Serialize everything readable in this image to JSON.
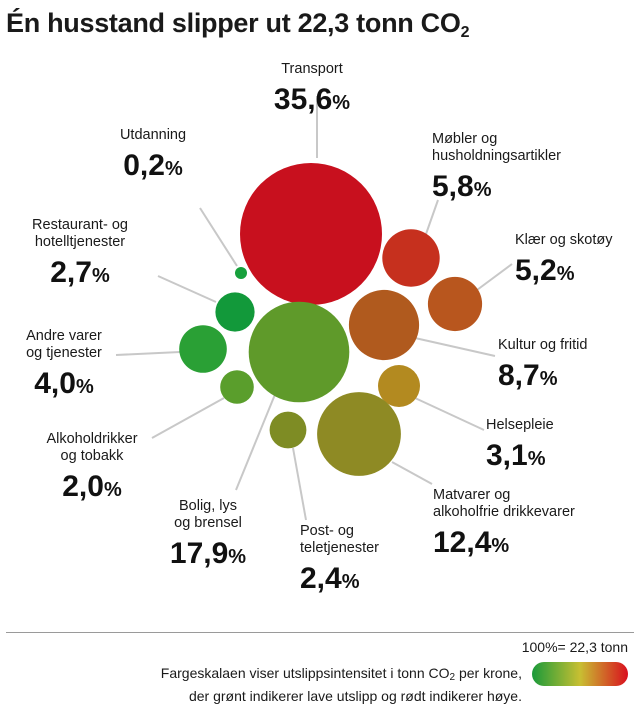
{
  "title": {
    "text": "Én husstand slipper ut 22,3 tonn CO",
    "sub": "2"
  },
  "scale_note": "100%= 22,3 tonn",
  "legend": {
    "line1_pre": "Fargeskalaen viser utslippsintensitet i tonn CO",
    "line1_sub": "2",
    "line1_post": " per krone,",
    "line2": "der grønt indikerer lave utslipp og rødt indikerer høye.",
    "gradient_colors": [
      "#1a9a3a",
      "#c8bf32",
      "#d90f1e"
    ]
  },
  "chart_data": {
    "type": "bubble",
    "title": "Én husstand slipper ut 22,3 tonn CO2",
    "total": "22,3 tonn",
    "unit": "%",
    "series": [
      {
        "category": "Transport",
        "value": 35.6,
        "label": "35,6",
        "color": "#c8101e"
      },
      {
        "category": "Møbler og husholdningsartikler",
        "value": 5.8,
        "label": "5,8",
        "color": "#c6301e"
      },
      {
        "category": "Klær og skotøy",
        "value": 5.2,
        "label": "5,2",
        "color": "#b8561e"
      },
      {
        "category": "Kultur og fritid",
        "value": 8.7,
        "label": "8,7",
        "color": "#b05a1e"
      },
      {
        "category": "Helsepleie",
        "value": 3.1,
        "label": "3,1",
        "color": "#b38a20"
      },
      {
        "category": "Matvarer og alkoholfrie drikkevarer",
        "value": 12.4,
        "label": "12,4",
        "color": "#8e8a24"
      },
      {
        "category": "Post- og teletjenester",
        "value": 2.4,
        "label": "2,4",
        "color": "#7e8c24"
      },
      {
        "category": "Bolig, lys og brensel",
        "value": 17.9,
        "label": "17,9",
        "color": "#5f9a2a"
      },
      {
        "category": "Alkoholdrikker og tobakk",
        "value": 2.0,
        "label": "2,0",
        "color": "#5a9e2c"
      },
      {
        "category": "Andre varer og tjenester",
        "value": 4.0,
        "label": "4,0",
        "color": "#2aa035"
      },
      {
        "category": "Restaurant- og hotelltjenester",
        "value": 2.7,
        "label": "2,7",
        "color": "#12993a"
      },
      {
        "category": "Utdanning",
        "value": 0.2,
        "label": "0,2",
        "color": "#17a03c"
      }
    ]
  }
}
